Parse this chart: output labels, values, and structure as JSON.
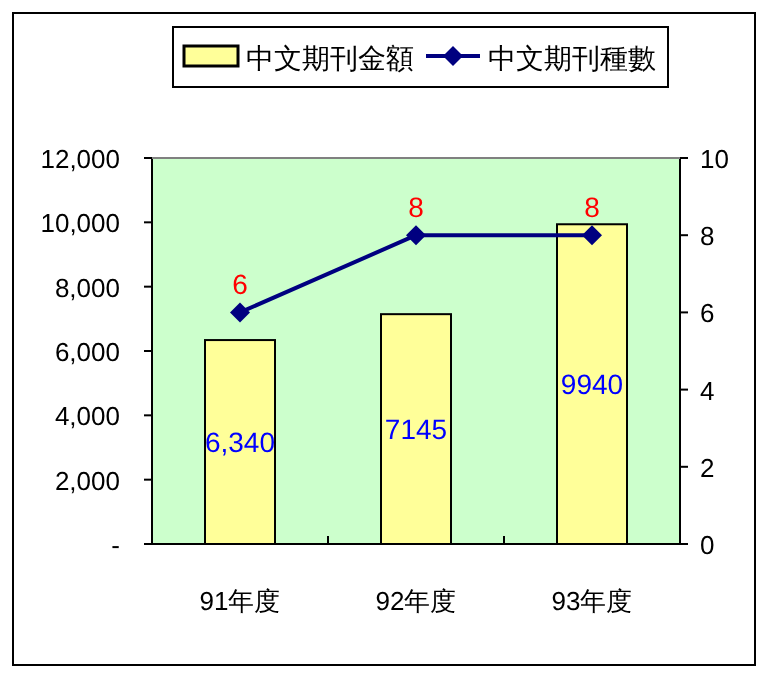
{
  "chart_data": {
    "type": "bar",
    "categories": [
      "91年度",
      "92年度",
      "93年度"
    ],
    "series": [
      {
        "name": "中文期刊金額",
        "color": "#ffff99",
        "values": [
          6340,
          7145,
          9940
        ],
        "value_labels": [
          "6,340",
          "7145",
          "9940"
        ]
      },
      {
        "name": "中文期刊種數",
        "type": "line",
        "axis": "y2",
        "color": "#000080",
        "marker": "diamond",
        "values": [
          6,
          8,
          8
        ],
        "value_labels": [
          "6",
          "8",
          "8"
        ]
      }
    ],
    "ylim": [
      0,
      12000
    ],
    "yticks": [
      {
        "value": 0,
        "label": "-"
      },
      {
        "value": 2000,
        "label": "2,000"
      },
      {
        "value": 4000,
        "label": "4,000"
      },
      {
        "value": 6000,
        "label": "6,000"
      },
      {
        "value": 8000,
        "label": "8,000"
      },
      {
        "value": 10000,
        "label": "10,000"
      },
      {
        "value": 12000,
        "label": "12,000"
      }
    ],
    "y2lim": [
      0,
      10
    ],
    "y2ticks": [
      0,
      2,
      4,
      6,
      8,
      10
    ],
    "legend": "top"
  }
}
